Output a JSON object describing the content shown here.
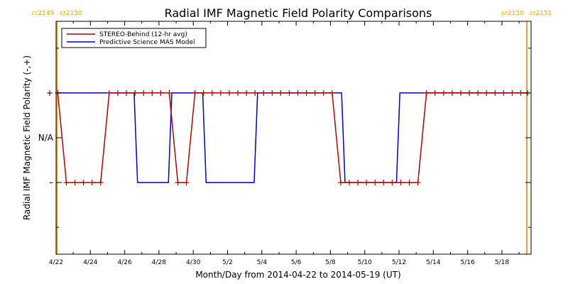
{
  "colors": {
    "stereo": "#b00000",
    "model": "#0000c0",
    "cr_marker": "#f0a020",
    "axis": "#000000"
  },
  "chart_data": {
    "type": "line",
    "title": "Radial IMF Magnetic Field Polarity Comparisons",
    "xlabel": "Month/Day from 2014-04-22 to 2014-05-19 (UT)",
    "ylabel": "Radial IMF Magnetic Field Polarity (-,+)",
    "xlim": [
      0,
      27.7
    ],
    "ylim": [
      -2.6,
      2.6
    ],
    "x_ticks": [
      {
        "x": 0,
        "label": "4/22"
      },
      {
        "x": 2,
        "label": "4/24"
      },
      {
        "x": 4,
        "label": "4/26"
      },
      {
        "x": 6,
        "label": "4/28"
      },
      {
        "x": 8,
        "label": "4/30"
      },
      {
        "x": 10,
        "label": "5/2"
      },
      {
        "x": 12,
        "label": "5/4"
      },
      {
        "x": 14,
        "label": "5/6"
      },
      {
        "x": 16,
        "label": "5/8"
      },
      {
        "x": 18,
        "label": "5/10"
      },
      {
        "x": 20,
        "label": "5/12"
      },
      {
        "x": 22,
        "label": "5/14"
      },
      {
        "x": 24,
        "label": "5/16"
      },
      {
        "x": 26,
        "label": "5/18"
      }
    ],
    "y_ticks": [
      {
        "y": 1,
        "label": "+"
      },
      {
        "y": 0,
        "label": "N/A"
      },
      {
        "y": -1,
        "label": "–"
      }
    ],
    "cr_markers": [
      {
        "x": 0.05,
        "left_label": "cr2149",
        "right_label": "cr2150"
      },
      {
        "x": 27.45,
        "left_label": "cr2150",
        "right_label": "cr2151"
      }
    ],
    "legend_position": "top-left",
    "series": [
      {
        "name": "STEREO-Behind (12-hr avg)",
        "x": [
          0.1,
          0.6,
          1.1,
          1.6,
          2.1,
          2.6,
          3.1,
          3.6,
          4.1,
          4.6,
          5.1,
          5.6,
          6.1,
          6.6,
          7.1,
          7.6,
          8.1,
          8.6,
          9.1,
          9.6,
          10.1,
          10.6,
          11.1,
          11.6,
          12.1,
          12.6,
          13.1,
          13.6,
          14.1,
          14.6,
          15.1,
          15.6,
          16.1,
          16.6,
          17.1,
          17.6,
          18.1,
          18.6,
          19.1,
          19.6,
          20.1,
          20.6,
          21.1,
          21.6,
          22.1,
          22.6,
          23.1,
          23.6,
          24.1,
          24.6,
          25.1,
          25.6,
          26.1,
          26.6,
          27.1,
          27.5
        ],
        "y": [
          1,
          -1,
          -1,
          -1,
          -1,
          -1,
          1,
          1,
          1,
          1,
          1,
          1,
          1,
          1,
          -1,
          -1,
          1,
          1,
          1,
          1,
          1,
          1,
          1,
          1,
          1,
          1,
          1,
          1,
          1,
          1,
          1,
          1,
          1,
          -1,
          -1,
          -1,
          -1,
          -1,
          -1,
          -1,
          -1,
          -1,
          -1,
          1,
          1,
          1,
          1,
          1,
          1,
          1,
          1,
          1,
          1,
          1,
          1,
          1
        ]
      },
      {
        "name": "Predictive Science MAS Model",
        "x": [
          0.05,
          4.55,
          4.75,
          6.55,
          6.75,
          8.55,
          8.75,
          11.55,
          11.75,
          16.65,
          16.85,
          19.85,
          20.05,
          27.5
        ],
        "y": [
          1,
          1,
          -1,
          -1,
          1,
          1,
          -1,
          -1,
          1,
          1,
          -1,
          -1,
          1,
          1
        ]
      }
    ]
  }
}
